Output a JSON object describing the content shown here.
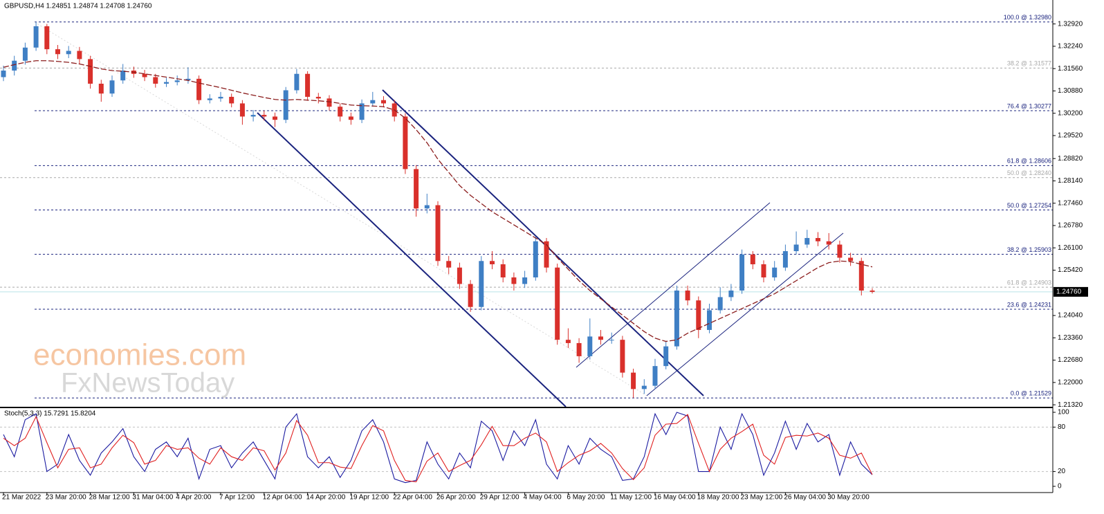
{
  "chart_data": {
    "type": "candlestick",
    "title": "GBPUSD,H4  1.24851 1.24874 1.24708 1.24760",
    "categories": [
      "21 Mar 2022",
      null,
      null,
      null,
      "23 Mar 20:00",
      null,
      null,
      null,
      "28 Mar 12:00",
      null,
      null,
      null,
      "31 Mar 04:00",
      null,
      null,
      null,
      "4 Apr 20:00",
      null,
      null,
      null,
      "7 Apr 12:00",
      null,
      null,
      null,
      "12 Apr 04:00",
      null,
      null,
      null,
      "14 Apr 20:00",
      null,
      null,
      null,
      "19 Apr 12:00",
      null,
      null,
      null,
      "22 Apr 04:00",
      null,
      null,
      null,
      "26 Apr 20:00",
      null,
      null,
      null,
      "29 Apr 12:00",
      null,
      null,
      null,
      "4 May 04:00",
      null,
      null,
      null,
      "6 May 20:00",
      null,
      null,
      null,
      "11 May 12:00",
      null,
      null,
      null,
      "16 May 04:00",
      null,
      null,
      null,
      "18 May 20:00",
      null,
      null,
      null,
      "23 May 12:00",
      null,
      null,
      null,
      "26 May 04:00",
      null,
      null,
      null,
      "30 May 20:00",
      null,
      null,
      null,
      null
    ],
    "open": [
      1.313,
      1.315,
      1.318,
      1.322,
      1.3285,
      1.3215,
      1.32,
      1.321,
      1.3185,
      1.311,
      1.308,
      1.312,
      1.315,
      1.314,
      1.313,
      1.311,
      1.3115,
      1.312,
      1.3125,
      1.306,
      1.3065,
      1.307,
      1.305,
      1.301,
      1.3015,
      1.301,
      1.3,
      1.309,
      1.314,
      1.307,
      1.3065,
      1.304,
      1.301,
      1.3,
      1.305,
      1.306,
      1.305,
      1.301,
      1.285,
      1.273,
      1.274,
      1.257,
      1.255,
      1.25,
      1.243,
      1.257,
      1.256,
      1.252,
      1.25,
      1.252,
      1.263,
      1.255,
      1.233,
      1.232,
      1.228,
      1.234,
      1.233,
      1.233,
      1.223,
      1.218,
      1.219,
      1.225,
      1.231,
      1.248,
      1.245,
      1.236,
      1.242,
      1.246,
      1.248,
      1.259,
      1.256,
      1.252,
      1.255,
      1.26,
      1.262,
      1.264,
      1.263,
      1.262,
      1.258,
      1.257,
      1.248
    ],
    "high": [
      1.3165,
      1.3195,
      1.3235,
      1.3298,
      1.3292,
      1.3228,
      1.3225,
      1.3222,
      1.3195,
      1.3122,
      1.3135,
      1.317,
      1.3162,
      1.3152,
      1.314,
      1.3128,
      1.3135,
      1.316,
      1.3135,
      1.3078,
      1.3085,
      1.308,
      1.306,
      1.303,
      1.3028,
      1.3022,
      1.31,
      1.3155,
      1.3148,
      1.3082,
      1.3075,
      1.305,
      1.3022,
      1.3062,
      1.3085,
      1.3072,
      1.306,
      1.302,
      1.2862,
      1.2775,
      1.2752,
      1.2585,
      1.2565,
      1.2512,
      1.2585,
      1.26,
      1.2575,
      1.2535,
      1.254,
      1.2645,
      1.264,
      1.2562,
      1.2365,
      1.2335,
      1.2395,
      1.236,
      1.2352,
      1.2342,
      1.2242,
      1.221,
      1.2272,
      1.2325,
      1.2495,
      1.2495,
      1.2462,
      1.244,
      1.249,
      1.25,
      1.2605,
      1.26,
      1.2572,
      1.257,
      1.262,
      1.266,
      1.2665,
      1.2658,
      1.2655,
      1.2632,
      1.2595,
      1.258,
      1.2487
    ],
    "low": [
      1.3118,
      1.3135,
      1.3168,
      1.321,
      1.32,
      1.3185,
      1.3188,
      1.317,
      1.3095,
      1.3055,
      1.307,
      1.311,
      1.3128,
      1.3118,
      1.3098,
      1.31,
      1.3105,
      1.311,
      1.3048,
      1.305,
      1.3055,
      1.3038,
      1.2985,
      1.2995,
      1.2998,
      1.2978,
      1.299,
      1.308,
      1.3058,
      1.305,
      1.3028,
      1.2995,
      1.2985,
      1.299,
      1.304,
      1.3038,
      1.2995,
      1.2835,
      1.2705,
      1.2715,
      1.2555,
      1.253,
      1.2485,
      1.2415,
      1.242,
      1.2545,
      1.2505,
      1.248,
      1.2488,
      1.251,
      1.2535,
      1.2315,
      1.2305,
      1.226,
      1.227,
      1.2315,
      1.2318,
      1.2215,
      1.2153,
      1.2165,
      1.218,
      1.224,
      1.23,
      1.2435,
      1.2335,
      1.235,
      1.241,
      1.2448,
      1.247,
      1.2545,
      1.2505,
      1.251,
      1.254,
      1.259,
      1.261,
      1.2615,
      1.2605,
      1.2565,
      1.2555,
      1.2465,
      1.2471
    ],
    "close": [
      1.315,
      1.318,
      1.322,
      1.3285,
      1.3215,
      1.32,
      1.321,
      1.3185,
      1.311,
      1.308,
      1.312,
      1.315,
      1.314,
      1.313,
      1.311,
      1.3115,
      1.312,
      1.3125,
      1.306,
      1.3065,
      1.307,
      1.305,
      1.301,
      1.3015,
      1.301,
      1.3,
      1.309,
      1.314,
      1.307,
      1.3065,
      1.304,
      1.301,
      1.3,
      1.305,
      1.306,
      1.305,
      1.301,
      1.285,
      1.273,
      1.274,
      1.257,
      1.255,
      1.25,
      1.243,
      1.257,
      1.256,
      1.252,
      1.25,
      1.252,
      1.263,
      1.255,
      1.233,
      1.232,
      1.228,
      1.234,
      1.233,
      1.233,
      1.223,
      1.218,
      1.219,
      1.225,
      1.231,
      1.248,
      1.245,
      1.236,
      1.242,
      1.246,
      1.248,
      1.259,
      1.256,
      1.252,
      1.255,
      1.26,
      1.262,
      1.264,
      1.263,
      1.262,
      1.258,
      1.257,
      1.248,
      1.2476
    ],
    "up_color": "#3f7fc4",
    "down_color": "#d9302b",
    "ma": {
      "color": "#8b1c1c",
      "values": [
        1.316,
        1.3168,
        1.3175,
        1.318,
        1.318,
        1.3178,
        1.3175,
        1.317,
        1.3163,
        1.3155,
        1.315,
        1.3148,
        1.3145,
        1.314,
        1.3135,
        1.313,
        1.3125,
        1.312,
        1.3112,
        1.3105,
        1.3098,
        1.309,
        1.3082,
        1.3075,
        1.3068,
        1.3062,
        1.306,
        1.3062,
        1.306,
        1.3058,
        1.3055,
        1.305,
        1.3045,
        1.3043,
        1.3042,
        1.304,
        1.303,
        1.3005,
        1.297,
        1.293,
        1.288,
        1.284,
        1.28,
        1.277,
        1.2745,
        1.272,
        1.27,
        1.268,
        1.266,
        1.264,
        1.262,
        1.258,
        1.2545,
        1.251,
        1.248,
        1.2455,
        1.243,
        1.2405,
        1.238,
        1.2355,
        1.2335,
        1.2325,
        1.233,
        1.235,
        1.2365,
        1.238,
        1.2395,
        1.241,
        1.2425,
        1.244,
        1.2455,
        1.247,
        1.249,
        1.251,
        1.253,
        1.255,
        1.2565,
        1.257,
        1.2568,
        1.256,
        1.2552
      ]
    },
    "ylim": [
      1.2126,
      1.3327
    ],
    "yticks": [
      {
        "value": 1.3292,
        "label": "1.32920"
      },
      {
        "value": 1.3224,
        "label": "1.32240"
      },
      {
        "value": 1.3156,
        "label": "1.31560"
      },
      {
        "value": 1.3088,
        "label": "1.30880"
      },
      {
        "value": 1.302,
        "label": "1.30200"
      },
      {
        "value": 1.2952,
        "label": "1.29520"
      },
      {
        "value": 1.2882,
        "label": "1.28820"
      },
      {
        "value": 1.2814,
        "label": "1.28140"
      },
      {
        "value": 1.2746,
        "label": "1.27460"
      },
      {
        "value": 1.2678,
        "label": "1.26780"
      },
      {
        "value": 1.261,
        "label": "1.26100"
      },
      {
        "value": 1.2542,
        "label": "1.25420"
      },
      {
        "value": 1.2404,
        "label": "1.24040"
      },
      {
        "value": 1.2336,
        "label": "1.23360"
      },
      {
        "value": 1.2268,
        "label": "1.22680"
      },
      {
        "value": 1.22,
        "label": "1.22000"
      },
      {
        "value": 1.2132,
        "label": "1.21320"
      }
    ],
    "levels": [
      {
        "value": 1.3298,
        "label": "100.0 @ 1.32980",
        "color": "#1a237e"
      },
      {
        "value": 1.30277,
        "label": "76.4 @ 1.30277",
        "color": "#1a237e"
      },
      {
        "value": 1.28606,
        "label": "61.8 @ 1.28606",
        "color": "#1a237e"
      },
      {
        "value": 1.27254,
        "label": "50.0 @ 1.27254",
        "color": "#1a237e"
      },
      {
        "value": 1.25903,
        "label": "38.2 @ 1.25903",
        "color": "#1a237e"
      },
      {
        "value": 1.24231,
        "label": "23.6 @ 1.24231",
        "color": "#1a237e"
      },
      {
        "value": 1.21529,
        "label": "0.0 @ 1.21529",
        "color": "#1a237e"
      },
      {
        "value": 1.31577,
        "label": "38.2 @ 1.31577",
        "color": "#a8a8a8"
      },
      {
        "value": 1.2824,
        "label": "50.0 @ 1.28240",
        "color": "#a8a8a8"
      },
      {
        "value": 1.24903,
        "label": "61.8 @ 1.24903",
        "color": "#a8a8a8"
      }
    ],
    "last_price": {
      "value": 1.2476,
      "label": "1.24760"
    },
    "watermark": [
      "economies.com",
      "FxNewsToday"
    ],
    "indicator": {
      "title": "Stoch(5,3,3) 15.7291 15.8204",
      "ylim": [
        0,
        100
      ],
      "yticks": [
        0,
        20,
        80,
        100
      ],
      "levels": [
        20,
        80
      ],
      "series": [
        {
          "color": "#1a1aa0",
          "values": [
            70,
            40,
            90,
            98,
            20,
            30,
            70,
            35,
            15,
            45,
            60,
            78,
            40,
            20,
            50,
            60,
            40,
            65,
            10,
            50,
            55,
            25,
            45,
            60,
            35,
            10,
            80,
            98,
            40,
            25,
            40,
            12,
            35,
            75,
            90,
            60,
            10,
            5,
            8,
            60,
            30,
            10,
            45,
            25,
            88,
            75,
            35,
            75,
            55,
            90,
            30,
            10,
            55,
            30,
            65,
            50,
            40,
            8,
            10,
            40,
            98,
            70,
            100,
            95,
            20,
            20,
            80,
            50,
            98,
            70,
            15,
            45,
            88,
            50,
            85,
            60,
            70,
            15,
            60,
            30,
            15.7291
          ]
        },
        {
          "color": "#e02020",
          "values": [
            65,
            55,
            65,
            94,
            59,
            25,
            50,
            52,
            25,
            30,
            52,
            69,
            59,
            30,
            35,
            55,
            50,
            52,
            38,
            30,
            52,
            40,
            35,
            52,
            48,
            22,
            45,
            89,
            69,
            32,
            32,
            26,
            24,
            55,
            82,
            75,
            35,
            8,
            6,
            34,
            45,
            20,
            28,
            35,
            56,
            81,
            55,
            55,
            65,
            72,
            60,
            20,
            32,
            42,
            48,
            58,
            45,
            24,
            9,
            25,
            69,
            84,
            85,
            97,
            58,
            20,
            50,
            65,
            74,
            84,
            42,
            30,
            66,
            69,
            68,
            72,
            65,
            42,
            38,
            45,
            15.8204
          ]
        }
      ]
    }
  }
}
